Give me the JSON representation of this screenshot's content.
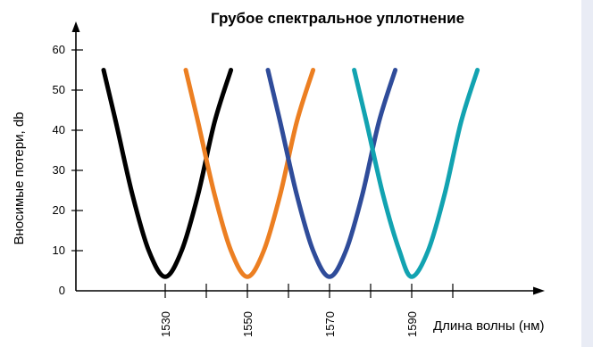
{
  "chart_data": {
    "type": "line",
    "title": "Грубое спектральное уплотнение",
    "xlabel": "Длина волны (нм)",
    "ylabel": "Вносимые потери, db",
    "ylim": [
      0,
      60
    ],
    "y_ticks": [
      "0",
      "10",
      "20",
      "30",
      "40",
      "50",
      "60"
    ],
    "x_tick_labels": [
      "1530",
      "1550",
      "1570",
      "1590"
    ],
    "x_tick_values": [
      1530,
      1550,
      1570,
      1590
    ],
    "x_minor_ticks": [
      1540,
      1560,
      1580,
      1600
    ],
    "xlim": [
      1508,
      1625
    ],
    "grid": false,
    "series": [
      {
        "color": "#000000",
        "x": [
          1515,
          1518,
          1522,
          1526,
          1530,
          1534,
          1538,
          1542,
          1546
        ],
        "y": [
          55,
          42,
          24,
          10,
          3.5,
          10,
          24,
          42,
          55
        ]
      },
      {
        "color": "#ec7f22",
        "x": [
          1535,
          1538,
          1542,
          1546,
          1550,
          1554,
          1558,
          1562,
          1566
        ],
        "y": [
          55,
          42,
          24,
          10,
          3.5,
          10,
          24,
          42,
          55
        ]
      },
      {
        "color": "#2f4c9a",
        "x": [
          1555,
          1558,
          1562,
          1566,
          1570,
          1574,
          1578,
          1582,
          1586
        ],
        "y": [
          55,
          42,
          24,
          10,
          3.5,
          10,
          24,
          42,
          55
        ]
      },
      {
        "color": "#12a3b1",
        "x": [
          1576,
          1579,
          1583,
          1587,
          1590,
          1594,
          1598,
          1602,
          1606
        ],
        "y": [
          55,
          42,
          24,
          10,
          3.5,
          10,
          24,
          42,
          55
        ]
      }
    ]
  }
}
